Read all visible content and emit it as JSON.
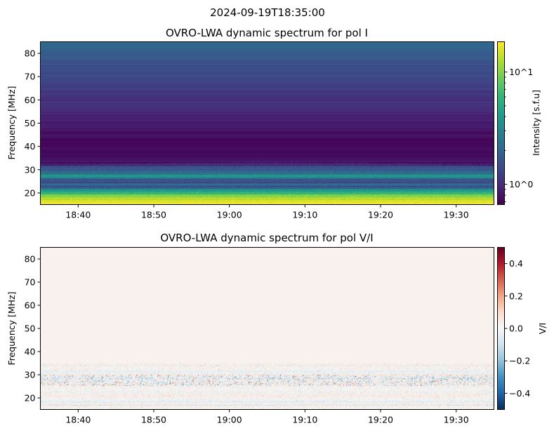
{
  "suptitle": "2024-09-19T18:35:00",
  "chart_data": [
    {
      "type": "heatmap",
      "title": "OVRO-LWA dynamic spectrum for pol I",
      "xlabel": "",
      "ylabel": "Frequency [MHz]",
      "colorbar_label": "Intensity [s.f.u]",
      "colormap": "viridis",
      "color_scale": "log",
      "color_range": [
        0.66,
        18.6
      ],
      "colorbar_ticks": [
        {
          "value": 1,
          "label": "10^0",
          "base": "10",
          "exp": "0"
        },
        {
          "value": 10,
          "label": "10^1",
          "base": "10",
          "exp": "1"
        }
      ],
      "xlim": [
        "18:35",
        "19:35"
      ],
      "ylim": [
        15,
        85
      ],
      "xticks": [
        "18:40",
        "18:50",
        "19:00",
        "19:10",
        "19:20",
        "19:30"
      ],
      "yticks": [
        20,
        30,
        40,
        50,
        60,
        70,
        80
      ],
      "freq_profile_mhz": [
        15,
        16,
        18,
        20,
        21,
        22,
        24,
        26,
        27,
        28,
        30,
        32,
        35,
        40,
        45,
        50,
        55,
        60,
        65,
        70,
        75,
        80,
        85
      ],
      "freq_profile_log10_sfu": [
        1.3,
        1.25,
        1.05,
        0.75,
        0.55,
        0.3,
        0.2,
        0.25,
        0.65,
        0.3,
        0.12,
        0.0,
        -0.14,
        -0.16,
        -0.12,
        -0.07,
        -0.02,
        0.03,
        0.08,
        0.13,
        0.18,
        0.25,
        0.3
      ]
    },
    {
      "type": "heatmap",
      "title": "OVRO-LWA dynamic spectrum for pol V/I",
      "xlabel": "",
      "ylabel": "Frequency [MHz]",
      "colorbar_label": "V/I",
      "colormap": "RdBu_r",
      "color_scale": "linear",
      "color_range": [
        -0.5,
        0.5
      ],
      "colorbar_ticks": [
        {
          "value": 0.4,
          "label": "0.4"
        },
        {
          "value": 0.2,
          "label": "0.2"
        },
        {
          "value": 0.0,
          "label": "0.0"
        },
        {
          "value": -0.2,
          "label": "−0.2"
        },
        {
          "value": -0.4,
          "label": "−0.4"
        }
      ],
      "xlim": [
        "18:35",
        "19:35"
      ],
      "ylim": [
        15,
        85
      ],
      "xticks": [
        "18:40",
        "18:50",
        "19:00",
        "19:10",
        "19:20",
        "19:30"
      ],
      "yticks": [
        20,
        30,
        40,
        50,
        60,
        70,
        80
      ],
      "background_value": 0.02,
      "noisy_band_mhz": [
        15,
        35
      ]
    }
  ]
}
